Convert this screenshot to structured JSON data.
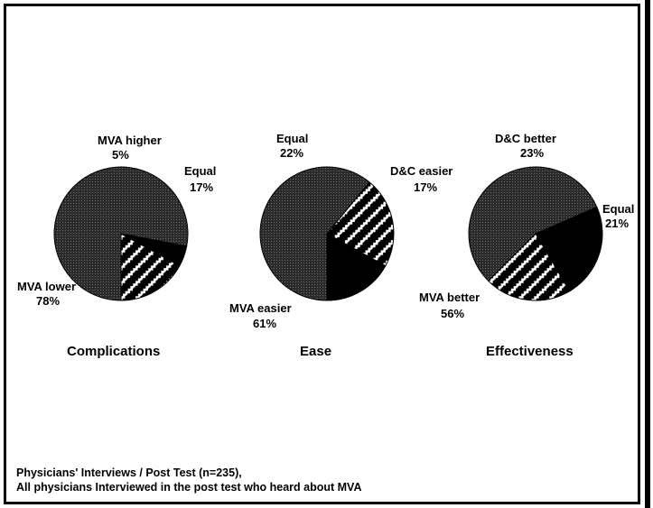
{
  "chart_data": [
    {
      "type": "pie",
      "title": "Complications",
      "slices": [
        {
          "label": "MVA lower",
          "value": 78,
          "value_label": "78%",
          "pattern": "dots"
        },
        {
          "label": "MVA higher",
          "value": 5,
          "value_label": "5%",
          "pattern": "solid"
        },
        {
          "label": "Equal",
          "value": 17,
          "value_label": "17%",
          "pattern": "zigzag"
        }
      ]
    },
    {
      "type": "pie",
      "title": "Ease",
      "slices": [
        {
          "label": "MVA easier",
          "value": 61,
          "value_label": "61%",
          "pattern": "dots"
        },
        {
          "label": "Equal",
          "value": 22,
          "value_label": "22%",
          "pattern": "zigzag"
        },
        {
          "label": "D&C easier",
          "value": 17,
          "value_label": "17%",
          "pattern": "solid"
        }
      ]
    },
    {
      "type": "pie",
      "title": "Effectiveness",
      "slices": [
        {
          "label": "MVA better",
          "value": 56,
          "value_label": "56%",
          "pattern": "dots"
        },
        {
          "label": "D&C better",
          "value": 23,
          "value_label": "23%",
          "pattern": "solid"
        },
        {
          "label": "Equal",
          "value": 21,
          "value_label": "21%",
          "pattern": "zigzag"
        }
      ]
    }
  ],
  "footnote": {
    "line1": "Physicians' Interviews / Post Test (n=235),",
    "line2": "All physicians Interviewed in the post test who heard about MVA"
  },
  "colors": {
    "ink": "#000000",
    "dots": "#2b2b2b",
    "background": "#ffffff"
  }
}
